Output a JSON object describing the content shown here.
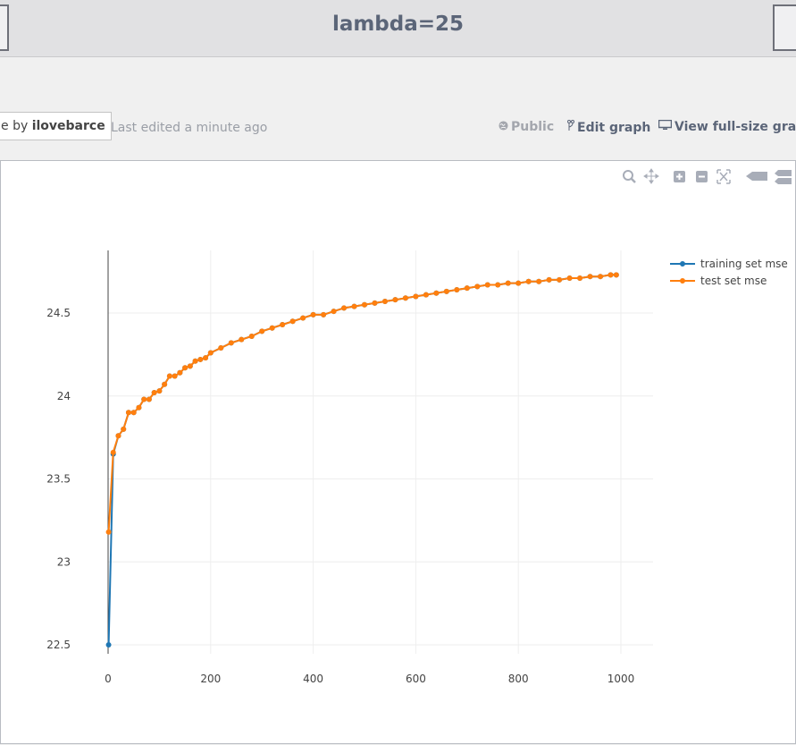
{
  "header": {
    "title": "lambda=25"
  },
  "meta": {
    "author_prefix": "e by",
    "author_name": "ilovebarce",
    "edited": "Last edited a minute ago",
    "public_label": "Public",
    "edit_label": "Edit graph",
    "fullsize_label": "View full-size graph"
  },
  "modebar": [
    "zoom-icon",
    "pan-icon",
    "zoom-in-icon",
    "zoom-out-icon",
    "autoscale-icon",
    "hover-closest-icon",
    "hover-compare-icon"
  ],
  "colors": {
    "training": "#1f77b4",
    "test": "#ff7f0e",
    "title": "#5b6578"
  },
  "chart_data": {
    "type": "line",
    "title": "",
    "xlabel": "",
    "ylabel": "",
    "xlim": [
      0,
      1050
    ],
    "ylim": [
      22.45,
      24.75
    ],
    "xticks": [
      0,
      200,
      400,
      600,
      800,
      1000
    ],
    "yticks": [
      22.5,
      23,
      23.5,
      24,
      24.5
    ],
    "xtick_labels": [
      "0",
      "200",
      "400",
      "600",
      "800",
      "1000"
    ],
    "ytick_labels": [
      "22.5",
      "23",
      "23.5",
      "24",
      "24.5"
    ],
    "grid": true,
    "legend_position": "top-right",
    "series": [
      {
        "name": "training set mse",
        "color": "#1f77b4",
        "x": [
          1,
          10,
          20,
          30,
          40,
          50,
          60,
          70,
          80,
          90,
          100,
          110,
          120,
          130,
          140,
          150,
          160,
          170,
          180,
          190,
          200,
          220,
          240,
          260,
          280,
          300,
          320,
          340,
          360,
          380,
          400,
          420,
          440,
          460,
          480,
          500,
          520,
          540,
          560,
          580,
          600,
          620,
          640,
          660,
          680,
          700,
          720,
          740,
          760,
          780,
          800,
          820,
          840,
          860,
          880,
          900,
          920,
          940,
          960,
          980,
          991
        ],
        "y": [
          22.5,
          23.65,
          23.76,
          23.8,
          23.9,
          23.9,
          23.93,
          23.98,
          23.98,
          24.02,
          24.03,
          24.07,
          24.12,
          24.12,
          24.14,
          24.17,
          24.18,
          24.21,
          24.22,
          24.23,
          24.26,
          24.29,
          24.32,
          24.34,
          24.36,
          24.39,
          24.41,
          24.43,
          24.45,
          24.47,
          24.49,
          24.49,
          24.51,
          24.53,
          24.54,
          24.55,
          24.56,
          24.57,
          24.58,
          24.59,
          24.6,
          24.61,
          24.62,
          24.63,
          24.64,
          24.65,
          24.66,
          24.67,
          24.67,
          24.68,
          24.68,
          24.69,
          24.69,
          24.7,
          24.7,
          24.71,
          24.71,
          24.72,
          24.72,
          24.73,
          24.73
        ]
      },
      {
        "name": "test set mse",
        "color": "#ff7f0e",
        "x": [
          1,
          10,
          20,
          30,
          40,
          50,
          60,
          70,
          80,
          90,
          100,
          110,
          120,
          130,
          140,
          150,
          160,
          170,
          180,
          190,
          200,
          220,
          240,
          260,
          280,
          300,
          320,
          340,
          360,
          380,
          400,
          420,
          440,
          460,
          480,
          500,
          520,
          540,
          560,
          580,
          600,
          620,
          640,
          660,
          680,
          700,
          720,
          740,
          760,
          780,
          800,
          820,
          840,
          860,
          880,
          900,
          920,
          940,
          960,
          980,
          991
        ],
        "y": [
          23.18,
          23.66,
          23.76,
          23.8,
          23.9,
          23.9,
          23.93,
          23.98,
          23.98,
          24.02,
          24.03,
          24.07,
          24.12,
          24.12,
          24.14,
          24.17,
          24.18,
          24.21,
          24.22,
          24.23,
          24.26,
          24.29,
          24.32,
          24.34,
          24.36,
          24.39,
          24.41,
          24.43,
          24.45,
          24.47,
          24.49,
          24.49,
          24.51,
          24.53,
          24.54,
          24.55,
          24.56,
          24.57,
          24.58,
          24.59,
          24.6,
          24.61,
          24.62,
          24.63,
          24.64,
          24.65,
          24.66,
          24.67,
          24.67,
          24.68,
          24.68,
          24.69,
          24.69,
          24.7,
          24.7,
          24.71,
          24.71,
          24.72,
          24.72,
          24.73,
          24.73
        ]
      }
    ]
  }
}
